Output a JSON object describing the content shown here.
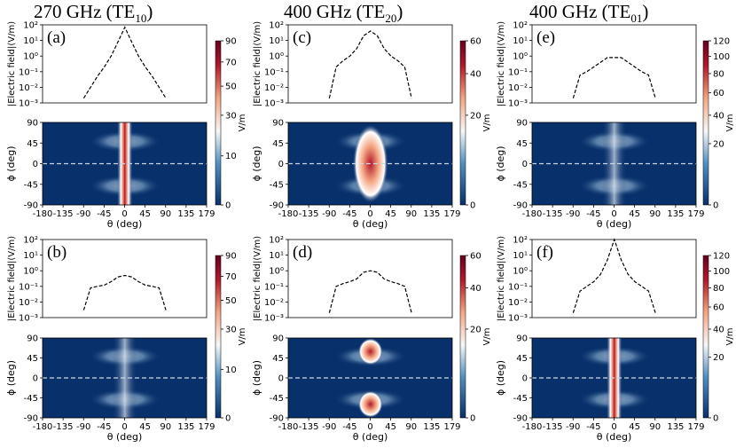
{
  "figure": {
    "column_titles": [
      {
        "text": "270 GHz (TE",
        "sub": "10",
        "close": ")"
      },
      {
        "text": "400 GHz (TE",
        "sub": "20",
        "close": ")"
      },
      {
        "text": "400 GHz (TE",
        "sub": "01",
        "close": ")"
      }
    ],
    "colorbar_unit": "V/m"
  },
  "chart_data": [
    {
      "panel": "a",
      "label": "(a)",
      "type": "line",
      "title": "270 GHz (TE10)",
      "ylabel": "|Electric field|(V/m)",
      "yscale": "log",
      "ylim": [
        0.001,
        100
      ],
      "ytick_labels": [
        "10²",
        "10¹",
        "10⁰",
        "10⁻¹",
        "10⁻²",
        "10⁻³"
      ],
      "x_range": [
        -90,
        90
      ],
      "x": [
        -90,
        -75,
        -60,
        -45,
        -30,
        -15,
        0,
        15,
        30,
        45,
        60,
        75,
        90
      ],
      "y": [
        0.002,
        0.01,
        0.05,
        0.2,
        1,
        8,
        70,
        8,
        1,
        0.2,
        0.05,
        0.01,
        0.002
      ],
      "line_style": "dashed"
    },
    {
      "panel": "a",
      "type": "heatmap",
      "xlabel": "θ (deg)",
      "ylabel": "ϕ (deg)",
      "xlim": [
        -180,
        179
      ],
      "ylim": [
        -90,
        90
      ],
      "xtick_labels": [
        "-180",
        "-135",
        "-90",
        "-45",
        "0",
        "45",
        "90",
        "135",
        "179"
      ],
      "ytick_labels": [
        "90",
        "45",
        "0",
        "-45",
        "-90"
      ],
      "colorbar": {
        "label": "V/m",
        "ticks": [
          "0",
          "10",
          "30",
          "50",
          "70",
          "90"
        ],
        "max": 90
      },
      "pattern": "central vertical beam with side lobes",
      "cut_line_phi": 0
    },
    {
      "panel": "b",
      "label": "(b)",
      "type": "line",
      "ylabel": "|Electric field|(V/m)",
      "yscale": "log",
      "ylim": [
        0.001,
        100
      ],
      "ytick_labels": [
        "10²",
        "10¹",
        "10⁰",
        "10⁻¹",
        "10⁻²",
        "10⁻³"
      ],
      "x_range": [
        -90,
        90
      ],
      "x": [
        -90,
        -75,
        -60,
        -45,
        -30,
        -15,
        0,
        15,
        30,
        45,
        60,
        75,
        90
      ],
      "y": [
        0.003,
        0.08,
        0.1,
        0.12,
        0.2,
        0.4,
        0.5,
        0.4,
        0.2,
        0.12,
        0.1,
        0.08,
        0.003
      ],
      "line_style": "dashed"
    },
    {
      "panel": "b",
      "type": "heatmap",
      "xlabel": "θ (deg)",
      "ylabel": "ϕ (deg)",
      "xlim": [
        -180,
        179
      ],
      "ylim": [
        -90,
        90
      ],
      "xtick_labels": [
        "-180",
        "-135",
        "-90",
        "-45",
        "0",
        "45",
        "90",
        "135",
        "179"
      ],
      "ytick_labels": [
        "90",
        "45",
        "0",
        "-45",
        "-90"
      ],
      "colorbar": {
        "label": "V/m",
        "ticks": [
          "0",
          "10",
          "30",
          "50",
          "70",
          "90"
        ],
        "max": 90
      },
      "pattern": "weak lobes above and below horizon",
      "cut_line_phi": 0
    },
    {
      "panel": "c",
      "label": "(c)",
      "type": "line",
      "title": "400 GHz (TE20)",
      "ylabel": "|Electric field|(V/m)",
      "yscale": "log",
      "ylim": [
        0.001,
        100
      ],
      "ytick_labels": [
        "10²",
        "10¹",
        "10⁰",
        "10⁻¹",
        "10⁻²",
        "10⁻³"
      ],
      "x_range": [
        -90,
        90
      ],
      "x": [
        -90,
        -75,
        -60,
        -45,
        -30,
        -15,
        0,
        15,
        30,
        45,
        60,
        75,
        90
      ],
      "y": [
        0.002,
        0.2,
        0.5,
        1,
        3,
        20,
        40,
        20,
        3,
        1,
        0.5,
        0.2,
        0.002
      ],
      "line_style": "dashed"
    },
    {
      "panel": "c",
      "type": "heatmap",
      "xlabel": "θ (deg)",
      "ylabel": "ϕ (deg)",
      "xlim": [
        -180,
        179
      ],
      "ylim": [
        -90,
        90
      ],
      "xtick_labels": [
        "-180",
        "-135",
        "-90",
        "-45",
        "0",
        "45",
        "90",
        "135",
        "179"
      ],
      "ytick_labels": [
        "90",
        "45",
        "0",
        "-45",
        "-90"
      ],
      "colorbar": {
        "label": "V/m",
        "ticks": [
          "0",
          "20",
          "40",
          "60"
        ],
        "max": 60
      },
      "pattern": "broad central beam",
      "cut_line_phi": 0
    },
    {
      "panel": "d",
      "label": "(d)",
      "type": "line",
      "ylabel": "|Electric field|(V/m)",
      "yscale": "log",
      "ylim": [
        0.001,
        100
      ],
      "ytick_labels": [
        "10²",
        "10¹",
        "10⁰",
        "10⁻¹",
        "10⁻²",
        "10⁻³"
      ],
      "x_range": [
        -90,
        90
      ],
      "x": [
        -90,
        -75,
        -60,
        -45,
        -30,
        -15,
        0,
        15,
        30,
        45,
        60,
        75,
        90
      ],
      "y": [
        0.002,
        0.1,
        0.15,
        0.2,
        0.3,
        0.8,
        1,
        0.8,
        0.3,
        0.2,
        0.15,
        0.1,
        0.002
      ],
      "line_style": "dashed"
    },
    {
      "panel": "d",
      "type": "heatmap",
      "xlabel": "θ (deg)",
      "ylabel": "ϕ (deg)",
      "xlim": [
        -180,
        179
      ],
      "ylim": [
        -90,
        90
      ],
      "xtick_labels": [
        "-180",
        "-135",
        "-90",
        "-45",
        "0",
        "45",
        "90",
        "135",
        "179"
      ],
      "ytick_labels": [
        "90",
        "45",
        "0",
        "-45",
        "-90"
      ],
      "colorbar": {
        "label": "V/m",
        "ticks": [
          "0",
          "20",
          "40",
          "60"
        ],
        "max": 60
      },
      "pattern": "beams near poles",
      "cut_line_phi": 0
    },
    {
      "panel": "e",
      "label": "(e)",
      "type": "line",
      "title": "400 GHz (TE01)",
      "ylabel": "|Electric field|(V/m)",
      "yscale": "log",
      "ylim": [
        0.001,
        100
      ],
      "ytick_labels": [
        "10²",
        "10¹",
        "10⁰",
        "10⁻¹",
        "10⁻²",
        "10⁻³"
      ],
      "x_range": [
        -90,
        90
      ],
      "x": [
        -90,
        -75,
        -60,
        -45,
        -30,
        -15,
        0,
        15,
        30,
        45,
        60,
        75,
        90
      ],
      "y": [
        0.002,
        0.06,
        0.1,
        0.2,
        0.4,
        0.8,
        0.8,
        0.8,
        0.4,
        0.2,
        0.1,
        0.06,
        0.002
      ],
      "line_style": "dashed"
    },
    {
      "panel": "e",
      "type": "heatmap",
      "xlabel": "θ (deg)",
      "ylabel": "ϕ (deg)",
      "xlim": [
        -180,
        179
      ],
      "ylim": [
        -90,
        90
      ],
      "xtick_labels": [
        "-180",
        "-135",
        "-90",
        "-45",
        "0",
        "45",
        "90",
        "135",
        "179"
      ],
      "ytick_labels": [
        "90",
        "45",
        "0",
        "-45",
        "-90"
      ],
      "colorbar": {
        "label": "V/m",
        "ticks": [
          "0",
          "20",
          "40",
          "60",
          "80",
          "100",
          "120"
        ],
        "max": 120
      },
      "pattern": "weak lobes, low field",
      "cut_line_phi": 0
    },
    {
      "panel": "f",
      "label": "(f)",
      "type": "line",
      "ylabel": "|Electric field|(V/m)",
      "yscale": "log",
      "ylim": [
        0.001,
        100
      ],
      "ytick_labels": [
        "10²",
        "10¹",
        "10⁰",
        "10⁻¹",
        "10⁻²",
        "10⁻³"
      ],
      "x_range": [
        -90,
        90
      ],
      "x": [
        -90,
        -75,
        -60,
        -45,
        -30,
        -15,
        0,
        15,
        30,
        45,
        60,
        75,
        90
      ],
      "y": [
        0.002,
        0.05,
        0.1,
        0.2,
        0.6,
        5,
        100,
        5,
        0.6,
        0.2,
        0.1,
        0.05,
        0.002
      ],
      "line_style": "dashed"
    },
    {
      "panel": "f",
      "type": "heatmap",
      "xlabel": "θ (deg)",
      "ylabel": "ϕ (deg)",
      "xlim": [
        -180,
        179
      ],
      "ylim": [
        -90,
        90
      ],
      "xtick_labels": [
        "-180",
        "-135",
        "-90",
        "-45",
        "0",
        "45",
        "90",
        "135",
        "179"
      ],
      "ytick_labels": [
        "90",
        "45",
        "0",
        "-45",
        "-90"
      ],
      "colorbar": {
        "label": "V/m",
        "ticks": [
          "0",
          "20",
          "40",
          "60",
          "80",
          "100",
          "120"
        ],
        "max": 120
      },
      "pattern": "narrow central beam",
      "cut_line_phi": 0
    }
  ]
}
